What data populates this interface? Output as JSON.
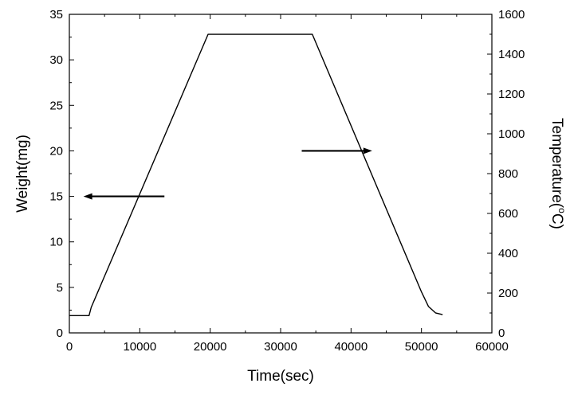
{
  "chart_data": {
    "type": "line",
    "xlabel": "Time(sec)",
    "ylabel": "Weight(mg)",
    "y2label": {
      "prefix": "Temperature(",
      "superscript": "o",
      "suffix": "C)"
    },
    "xlim": [
      0,
      60000
    ],
    "ylim": [
      0,
      35
    ],
    "y2lim": [
      0,
      1600
    ],
    "x_ticks": [
      0,
      10000,
      20000,
      30000,
      40000,
      50000,
      60000
    ],
    "y_ticks": [
      0,
      5,
      10,
      15,
      20,
      25,
      30,
      35
    ],
    "y2_ticks": [
      0,
      200,
      400,
      600,
      800,
      1000,
      1200,
      1400,
      1600
    ],
    "grid": false,
    "series": [
      {
        "axis": "y",
        "points": [
          [
            0,
            1.9
          ],
          [
            2800,
            1.9
          ],
          [
            3100,
            2.8
          ],
          [
            19700,
            32.8
          ],
          [
            34500,
            32.8
          ],
          [
            50000,
            4.5
          ],
          [
            51000,
            2.9
          ],
          [
            52000,
            2.2
          ],
          [
            53000,
            2.0
          ]
        ]
      }
    ],
    "annotations": [
      {
        "type": "arrow",
        "from": [
          13500,
          15.0
        ],
        "to": [
          2000,
          15.0
        ],
        "axis": "y"
      },
      {
        "type": "arrow",
        "from": [
          33000,
          20.0
        ],
        "to": [
          43000,
          20.0
        ],
        "axis": "y"
      }
    ],
    "colors": {
      "line": "#000000",
      "axes": "#000000",
      "background": "#ffffff"
    }
  }
}
